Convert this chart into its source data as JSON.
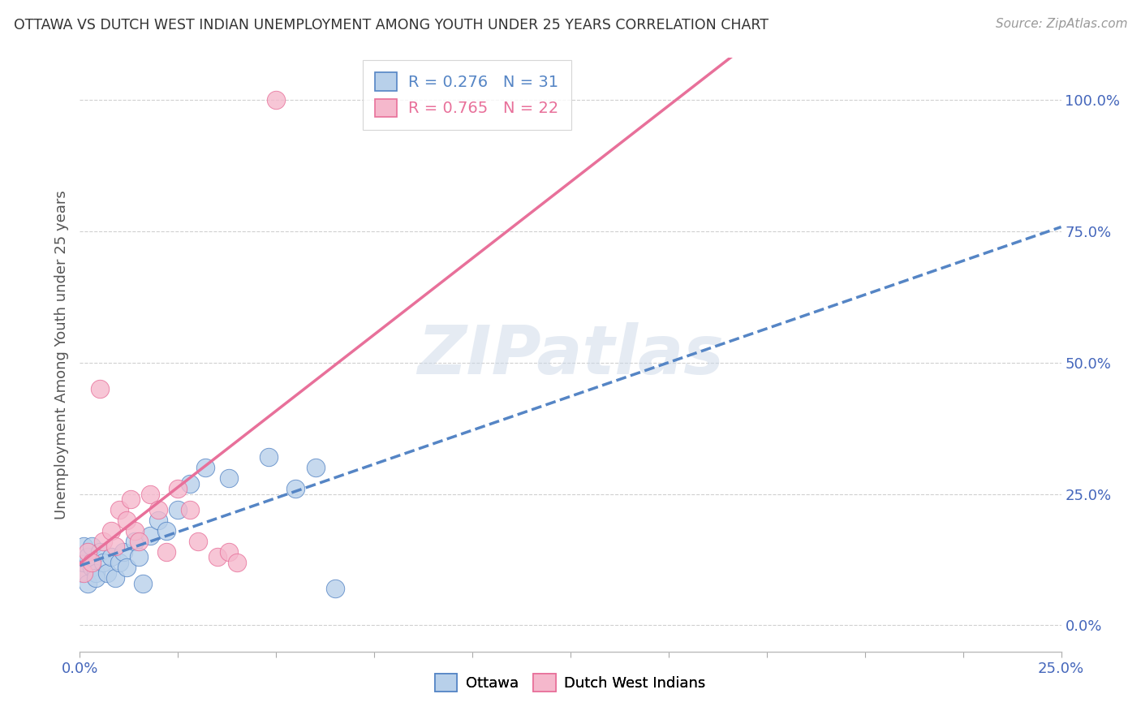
{
  "title": "OTTAWA VS DUTCH WEST INDIAN UNEMPLOYMENT AMONG YOUTH UNDER 25 YEARS CORRELATION CHART",
  "source": "Source: ZipAtlas.com",
  "ylabel": "Unemployment Among Youth under 25 years",
  "xlim": [
    0.0,
    0.25
  ],
  "ylim": [
    -0.05,
    1.08
  ],
  "ottawa_R": 0.276,
  "ottawa_N": 31,
  "dwi_R": 0.765,
  "dwi_N": 22,
  "ottawa_color": "#b8d0ea",
  "dwi_color": "#f5b8cc",
  "ottawa_line_color": "#5585c5",
  "dwi_line_color": "#e8709a",
  "ottawa_x": [
    0.0,
    0.001,
    0.001,
    0.002,
    0.002,
    0.003,
    0.003,
    0.004,
    0.004,
    0.005,
    0.006,
    0.007,
    0.008,
    0.009,
    0.01,
    0.011,
    0.012,
    0.014,
    0.015,
    0.016,
    0.018,
    0.02,
    0.022,
    0.025,
    0.028,
    0.032,
    0.038,
    0.048,
    0.055,
    0.06,
    0.065
  ],
  "ottawa_y": [
    0.1,
    0.12,
    0.15,
    0.08,
    0.13,
    0.11,
    0.15,
    0.1,
    0.09,
    0.14,
    0.12,
    0.1,
    0.13,
    0.09,
    0.12,
    0.14,
    0.11,
    0.16,
    0.13,
    0.08,
    0.17,
    0.2,
    0.18,
    0.22,
    0.27,
    0.3,
    0.28,
    0.32,
    0.26,
    0.3,
    0.07
  ],
  "dwi_x": [
    0.001,
    0.002,
    0.003,
    0.005,
    0.006,
    0.008,
    0.009,
    0.01,
    0.012,
    0.013,
    0.014,
    0.015,
    0.018,
    0.02,
    0.022,
    0.025,
    0.028,
    0.03,
    0.035,
    0.038,
    0.04,
    0.05
  ],
  "dwi_y": [
    0.1,
    0.14,
    0.12,
    0.45,
    0.16,
    0.18,
    0.15,
    0.22,
    0.2,
    0.24,
    0.18,
    0.16,
    0.25,
    0.22,
    0.14,
    0.26,
    0.22,
    0.16,
    0.13,
    0.14,
    0.12,
    1.0
  ],
  "watermark": "ZIPatlas",
  "background_color": "#ffffff",
  "grid_color": "#d0d0d0",
  "right_tick_color": "#4466bb",
  "bottom_tick_color": "#4466bb"
}
